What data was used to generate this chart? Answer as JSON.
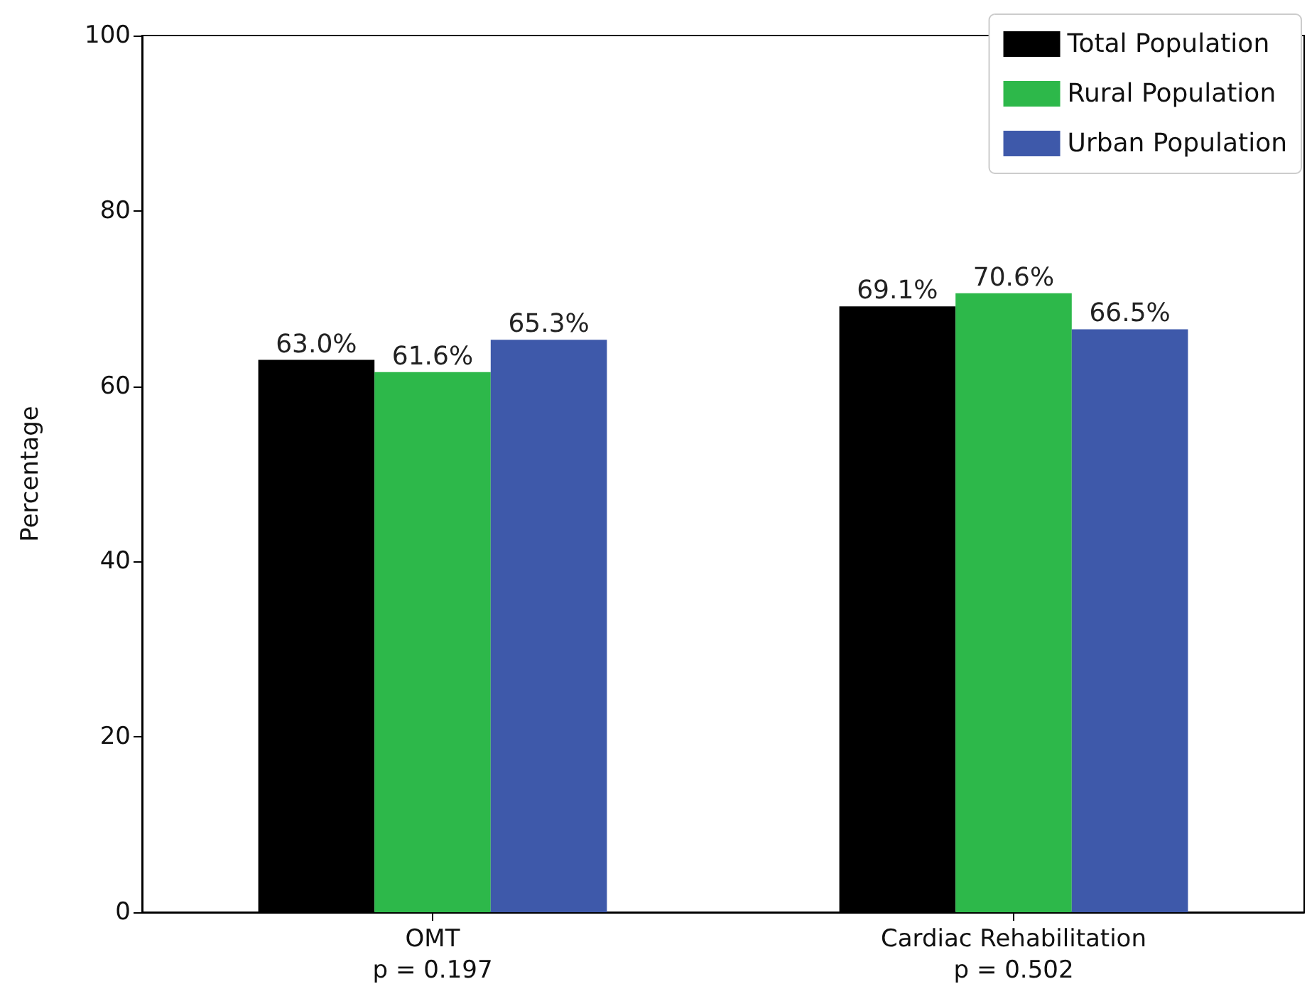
{
  "chart_data": {
    "type": "bar",
    "ylabel": "Percentage",
    "categories": [
      "OMT\np = 0.197",
      "Cardiac Rehabilitation\np = 0.502"
    ],
    "series": [
      {
        "name": "Total Population",
        "color": "#000000",
        "values": [
          63.0,
          69.1
        ],
        "value_labels": [
          "63.0%",
          "69.1%"
        ]
      },
      {
        "name": "Rural Population",
        "color": "#2db84a",
        "values": [
          61.6,
          70.6
        ],
        "value_labels": [
          "61.6%",
          "70.6%"
        ]
      },
      {
        "name": "Urban Population",
        "color": "#3e59aa",
        "values": [
          65.3,
          66.5
        ],
        "value_labels": [
          "65.3%",
          "66.5%"
        ]
      }
    ],
    "ylim": [
      0,
      100
    ],
    "yticks": [
      0,
      20,
      40,
      60,
      80,
      100
    ],
    "grid": false,
    "legend": "top right"
  }
}
